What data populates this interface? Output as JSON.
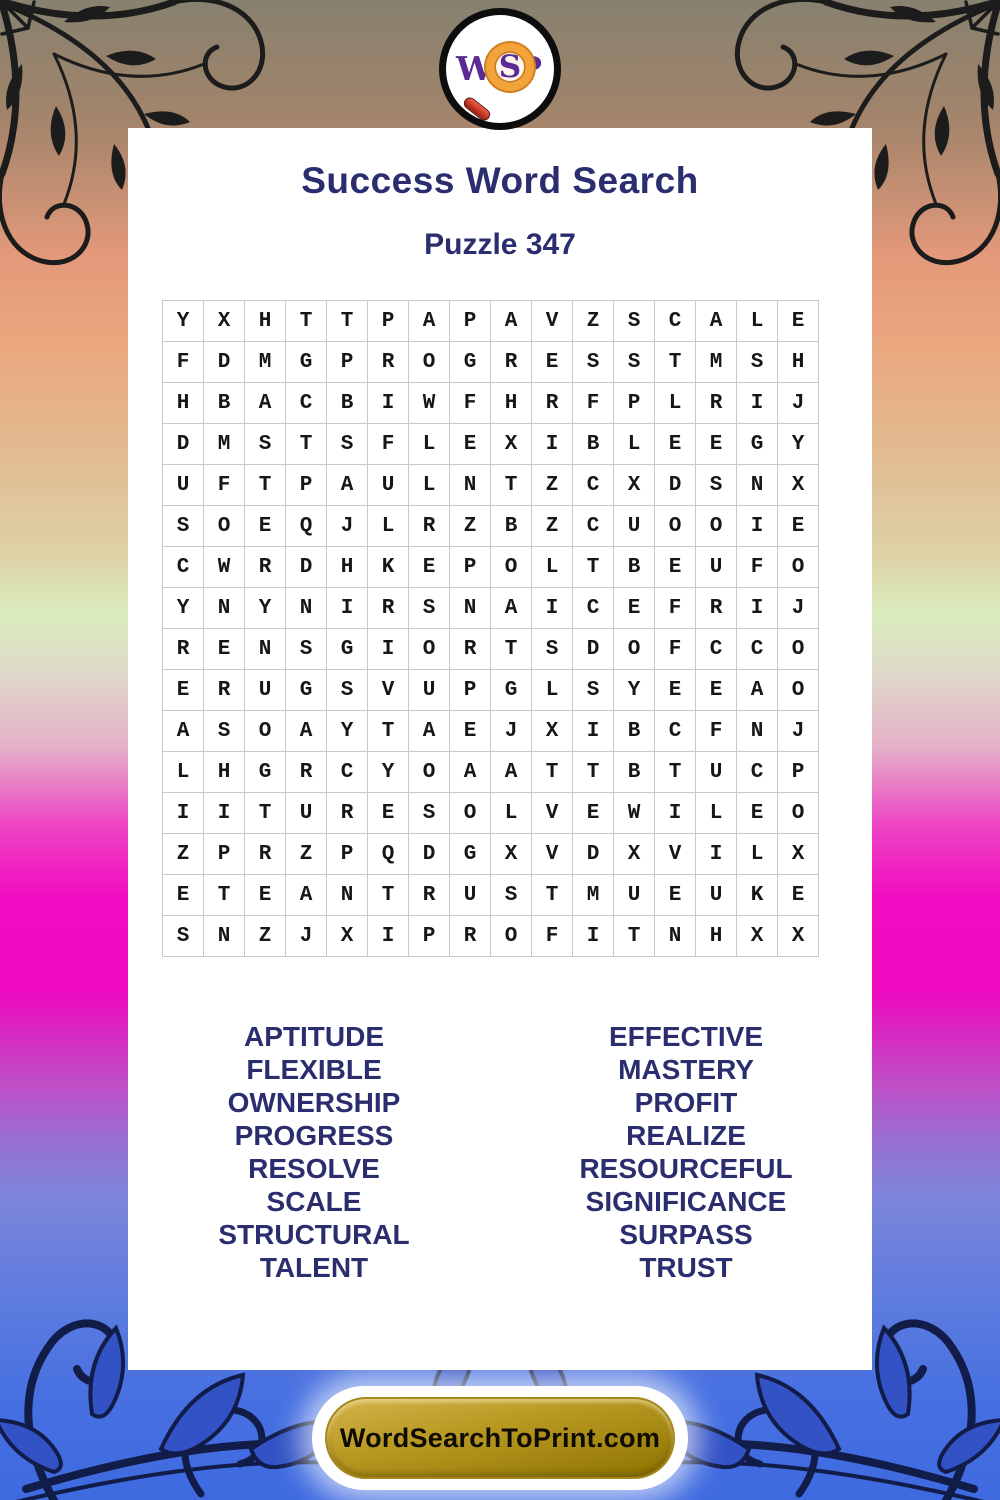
{
  "logo": {
    "w": "W",
    "s": "S",
    "p": "P"
  },
  "header": {
    "title": "Success Word Search",
    "subtitle": "Puzzle 347"
  },
  "grid": {
    "rows": [
      "YXHTTPAPAVZSCALE",
      "FDMGPROGRESSTMSH",
      "HBACBIWFHRFPLRIJ",
      "DMSTSFLEXIBLEEGY",
      "UFTPAULNTZCXDSNX",
      "SOEQJLRZBZCUOOIE",
      "CWRDHKEPOLTBEUFO",
      "YNYNIRSNAICEFRIJ",
      "RENSGIORTSDOFCCO",
      "ERUGSVUPGLSYEEAO",
      "ASOAYTAEJXIBCFNJ",
      "LHGRCYOAATTBTUCP",
      "IITURESOLVEWILEO",
      "ZPRZPQDGXVDXVILX",
      "ETEANTRUSTMUEUKE",
      "SNZJXIPROFITNHXX"
    ]
  },
  "words": {
    "left": [
      "APTITUDE",
      "FLEXIBLE",
      "OWNERSHIP",
      "PROGRESS",
      "RESOLVE",
      "SCALE",
      "STRUCTURAL",
      "TALENT"
    ],
    "right": [
      "EFFECTIVE",
      "MASTERY",
      "PROFIT",
      "REALIZE",
      "RESOURCEFUL",
      "SIGNIFICANCE",
      "SURPASS",
      "TRUST"
    ]
  },
  "footer": {
    "button_label": "WordSearchToPrint.com"
  },
  "colors": {
    "heading_navy": "#2a2e6e",
    "grid_line_gray": "#c9c9c9",
    "letter_black": "#161616",
    "button_gold_top": "#d4b34c",
    "button_gold_bottom": "#8d7400",
    "button_border": "#a5881c",
    "logo_purple": "#5b2a92",
    "magnifier_orange": "#f2a43a",
    "magnifier_handle_red": "#c43325",
    "bg_top_olive": "#87816f",
    "bg_salmon": "#eba77e",
    "bg_green": "#d9ecbc",
    "bg_magenta": "#ee0abf",
    "bg_bottom_blue": "#3e6ae0",
    "flourish_black": "#1c1c1c",
    "flourish_navy": "#121c48",
    "flourish_blue_fill": "#3252c6"
  }
}
